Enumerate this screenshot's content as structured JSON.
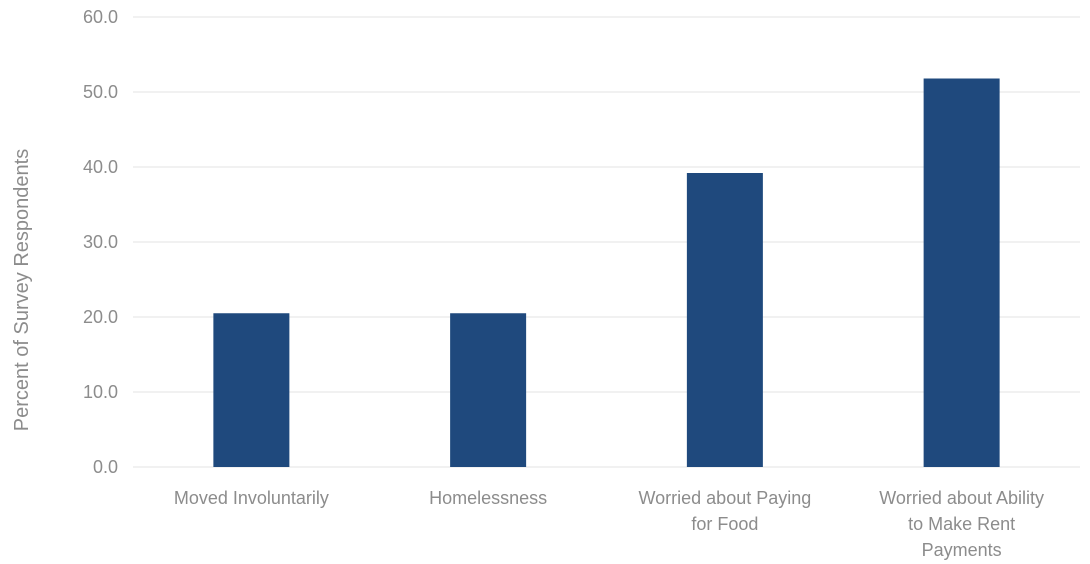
{
  "chart_data": {
    "type": "bar",
    "title": "",
    "xlabel": "",
    "ylabel": "Percent of Survey Respondents",
    "ylim": [
      0,
      60
    ],
    "yticks": [
      "0.0",
      "10.0",
      "20.0",
      "30.0",
      "40.0",
      "50.0",
      "60.0"
    ],
    "grid": true,
    "legend": "none",
    "bar_color": "#1f497d",
    "categories": [
      [
        "Moved Involuntarily"
      ],
      [
        "Homelessness"
      ],
      [
        "Worried about Paying",
        "for Food"
      ],
      [
        "Worried about Ability",
        "to Make Rent",
        "Payments"
      ]
    ],
    "values": [
      20.5,
      20.5,
      39.2,
      51.8
    ]
  }
}
